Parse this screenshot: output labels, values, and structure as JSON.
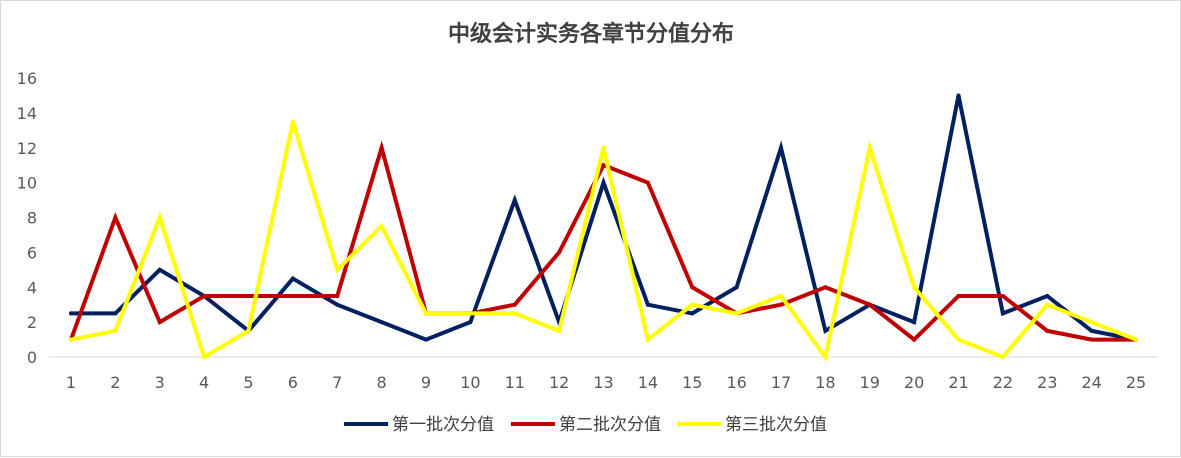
{
  "chart_data": {
    "type": "line",
    "title": "中级会计实务各章节分值分布",
    "xlabel": "",
    "ylabel": "",
    "categories": [
      "1",
      "2",
      "3",
      "4",
      "5",
      "6",
      "7",
      "8",
      "9",
      "10",
      "11",
      "12",
      "13",
      "14",
      "15",
      "16",
      "17",
      "18",
      "19",
      "20",
      "21",
      "22",
      "23",
      "24",
      "25"
    ],
    "ylim": [
      0,
      16
    ],
    "yticks": [
      0,
      2,
      4,
      6,
      8,
      10,
      12,
      14,
      16
    ],
    "grid": false,
    "legend": "bottom",
    "series": [
      {
        "name": "第一批次分值",
        "color": "#002060",
        "values": [
          2.5,
          2.5,
          5,
          3.5,
          1.5,
          4.5,
          3,
          2,
          1,
          2,
          9,
          2,
          10,
          3,
          2.5,
          4,
          12,
          1.5,
          3,
          2,
          15,
          2.5,
          3.5,
          1.5,
          1
        ]
      },
      {
        "name": "第二批次分值",
        "color": "#C00000",
        "values": [
          1,
          8,
          2,
          3.5,
          3.5,
          3.5,
          3.5,
          12,
          2.5,
          2.5,
          3,
          6,
          11,
          10,
          4,
          2.5,
          3,
          4,
          3,
          1,
          3.5,
          3.5,
          1.5,
          1,
          1
        ]
      },
      {
        "name": "第三批次分值",
        "color": "#FFFF00",
        "values": [
          1,
          1.5,
          8,
          0,
          1.5,
          13.5,
          5,
          7.5,
          2.5,
          2.5,
          2.5,
          1.5,
          12,
          1,
          3,
          2.5,
          3.5,
          0,
          12,
          4,
          1,
          0,
          3,
          2,
          1
        ]
      }
    ]
  }
}
